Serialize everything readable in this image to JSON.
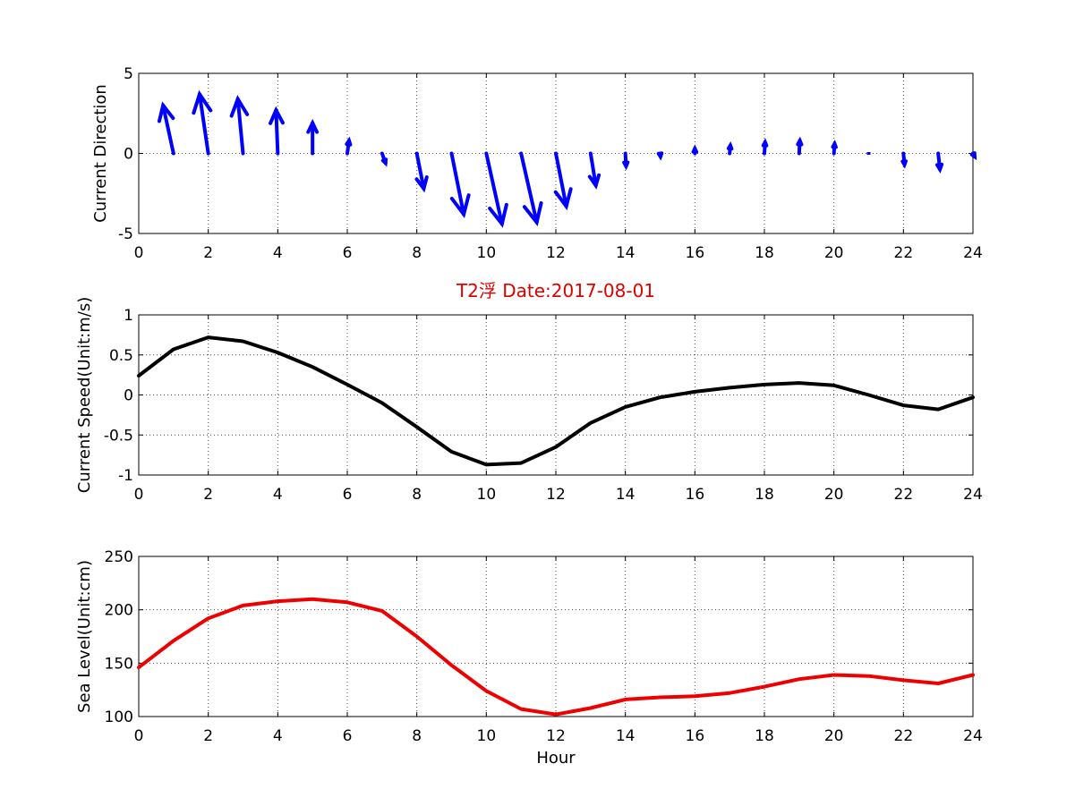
{
  "chart_data": [
    {
      "type": "quiver",
      "ylabel": "Current Direction",
      "xlim": [
        0,
        24
      ],
      "ylim": [
        -5,
        5
      ],
      "xticks": [
        "0",
        "2",
        "4",
        "6",
        "8",
        "10",
        "12",
        "14",
        "16",
        "18",
        "20",
        "22",
        "24"
      ],
      "yticks": [
        "5",
        "0",
        "-5"
      ],
      "color": "#0000ff",
      "hours": [
        1,
        2,
        3,
        4,
        5,
        6,
        7,
        8,
        9,
        10,
        11,
        12,
        13,
        14,
        15,
        16,
        17,
        18,
        19,
        20,
        21,
        22,
        23,
        24
      ],
      "u": [
        -0.3,
        -0.25,
        -0.15,
        -0.05,
        0,
        0.05,
        0.1,
        0.2,
        0.35,
        0.45,
        0.45,
        0.3,
        0.15,
        0.02,
        0.01,
        0,
        0.02,
        0.02,
        0.02,
        0.02,
        0.01,
        0.03,
        0.05,
        0.05
      ],
      "v": [
        3.0,
        3.7,
        3.4,
        2.7,
        1.9,
        0.8,
        -0.6,
        -2.2,
        -3.8,
        -4.4,
        -4.3,
        -3.3,
        -2.0,
        -0.8,
        -0.2,
        0.3,
        0.5,
        0.7,
        0.8,
        0.6,
        0,
        -0.7,
        -1.0,
        -0.2
      ]
    },
    {
      "type": "line",
      "title": "T2浮   Date:2017-08-01",
      "ylabel": "Current Speed(Unit:m/s)",
      "xlim": [
        0,
        24
      ],
      "ylim": [
        -1,
        1
      ],
      "xticks": [
        "0",
        "2",
        "4",
        "6",
        "8",
        "10",
        "12",
        "14",
        "16",
        "18",
        "20",
        "22",
        "24"
      ],
      "yticks": [
        "1",
        "0.5",
        "0",
        "-0.5",
        "-1"
      ],
      "color": "#000000",
      "x": [
        0,
        1,
        2,
        3,
        4,
        5,
        6,
        7,
        8,
        9,
        10,
        11,
        12,
        13,
        14,
        15,
        16,
        17,
        18,
        19,
        20,
        21,
        22,
        23,
        24
      ],
      "y": [
        0.24,
        0.57,
        0.72,
        0.67,
        0.53,
        0.35,
        0.13,
        -0.1,
        -0.4,
        -0.71,
        -0.87,
        -0.85,
        -0.65,
        -0.35,
        -0.15,
        -0.03,
        0.04,
        0.09,
        0.13,
        0.15,
        0.12,
        0,
        -0.13,
        -0.18,
        -0.03
      ]
    },
    {
      "type": "line",
      "ylabel": "Sea Level(Unit:cm)",
      "xlabel": "Hour",
      "xlim": [
        0,
        24
      ],
      "ylim": [
        100,
        250
      ],
      "xticks": [
        "0",
        "2",
        "4",
        "6",
        "8",
        "10",
        "12",
        "14",
        "16",
        "18",
        "20",
        "22",
        "24"
      ],
      "yticks": [
        "250",
        "200",
        "150",
        "100"
      ],
      "color": "#ee0000",
      "x": [
        0,
        1,
        2,
        3,
        4,
        5,
        6,
        7,
        8,
        9,
        10,
        11,
        12,
        13,
        14,
        15,
        16,
        17,
        18,
        19,
        20,
        21,
        22,
        23,
        24
      ],
      "y": [
        146,
        171,
        192,
        204,
        208,
        210,
        207,
        199,
        175,
        148,
        124,
        107,
        102,
        108,
        116,
        118,
        119,
        122,
        128,
        135,
        139,
        138,
        134,
        131,
        139
      ]
    }
  ]
}
